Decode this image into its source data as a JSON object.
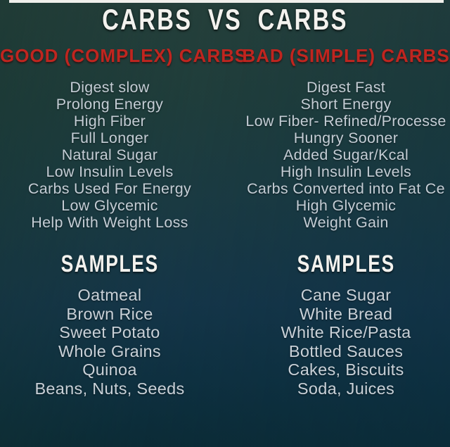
{
  "title": "CARBS VS CARBS",
  "good_column": {
    "header": "GOOD (COMPLEX) CARBS",
    "traits": [
      "Digest slow",
      "Prolong Energy",
      "High Fiber",
      "Full Longer",
      "Natural Sugar",
      "Low Insulin Levels",
      "Carbs Used For Energy",
      "Low Glycemic",
      "Help With Weight Loss"
    ],
    "samples_title": "SAMPLES",
    "samples": [
      "Oatmeal",
      "Brown Rice",
      "Sweet Potato",
      "Whole Grains",
      "Quinoa",
      "Beans, Nuts, Seeds"
    ]
  },
  "bad_column": {
    "header": "BAD (SIMPLE) CARBS",
    "traits": [
      "Digest Fast",
      "Short Energy",
      "Low Fiber- Refined/Processe",
      "Hungry Sooner",
      "Added Sugar/Kcal",
      "High Insulin Levels",
      "Carbs Converted into Fat Ce",
      "High Glycemic",
      "Weight Gain"
    ],
    "samples_title": "SAMPLES",
    "samples": [
      "Cane Sugar",
      "White Bread",
      "White Rice/Pasta",
      "Bottled Sauces",
      "Cakes, Biscuits",
      "Soda, Juices"
    ]
  },
  "colors": {
    "accent_red": "#c0251f",
    "title_white": "#f3f2ee",
    "list_text": "#c4cdd5",
    "samples_text": "#c9d1d8",
    "top_strip": "#f0efeb",
    "bg_top": "#253f3a",
    "bg_bottom": "#0b2b36"
  }
}
